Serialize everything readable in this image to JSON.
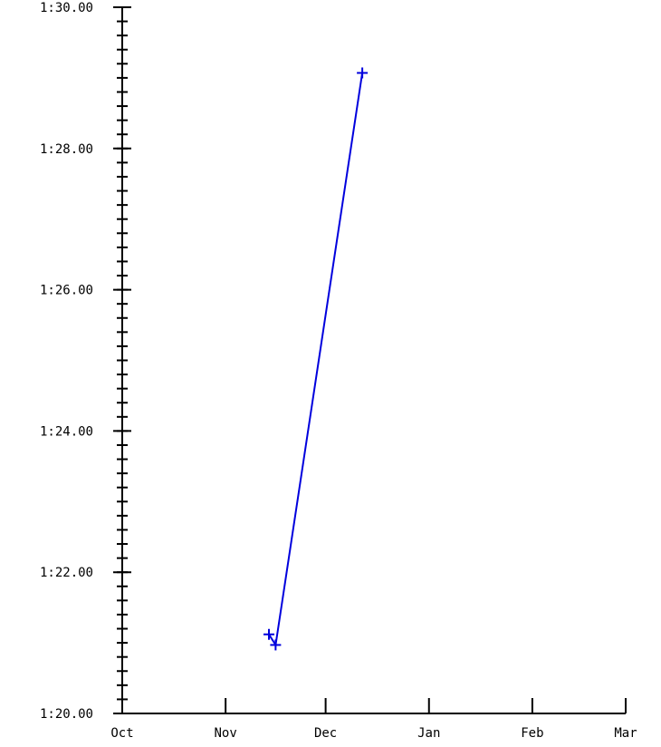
{
  "chart_data": {
    "type": "line",
    "title": "",
    "xlabel": "",
    "ylabel": "",
    "x_tick_labels": [
      "Oct",
      "Nov",
      "Dec",
      "Jan",
      "Feb",
      "Mar"
    ],
    "y_tick_labels": [
      "1:20.00",
      "1:22.00",
      "1:24.00",
      "1:26.00",
      "1:28.00",
      "1:30.00"
    ],
    "xlim": [
      "Oct 1",
      "Mar 1"
    ],
    "ylim": [
      "1:20.00",
      "1:30.00"
    ],
    "y_minor_tick_step_seconds": 0.2,
    "grid": false,
    "series": [
      {
        "color": "#0000dd",
        "marker": "plus",
        "points": [
          {
            "x": "Nov 14",
            "y": "1:21.12"
          },
          {
            "x": "Nov 16",
            "y": "1:20.97"
          },
          {
            "x": "Dec 12",
            "y": "1:29.07"
          }
        ]
      }
    ]
  }
}
